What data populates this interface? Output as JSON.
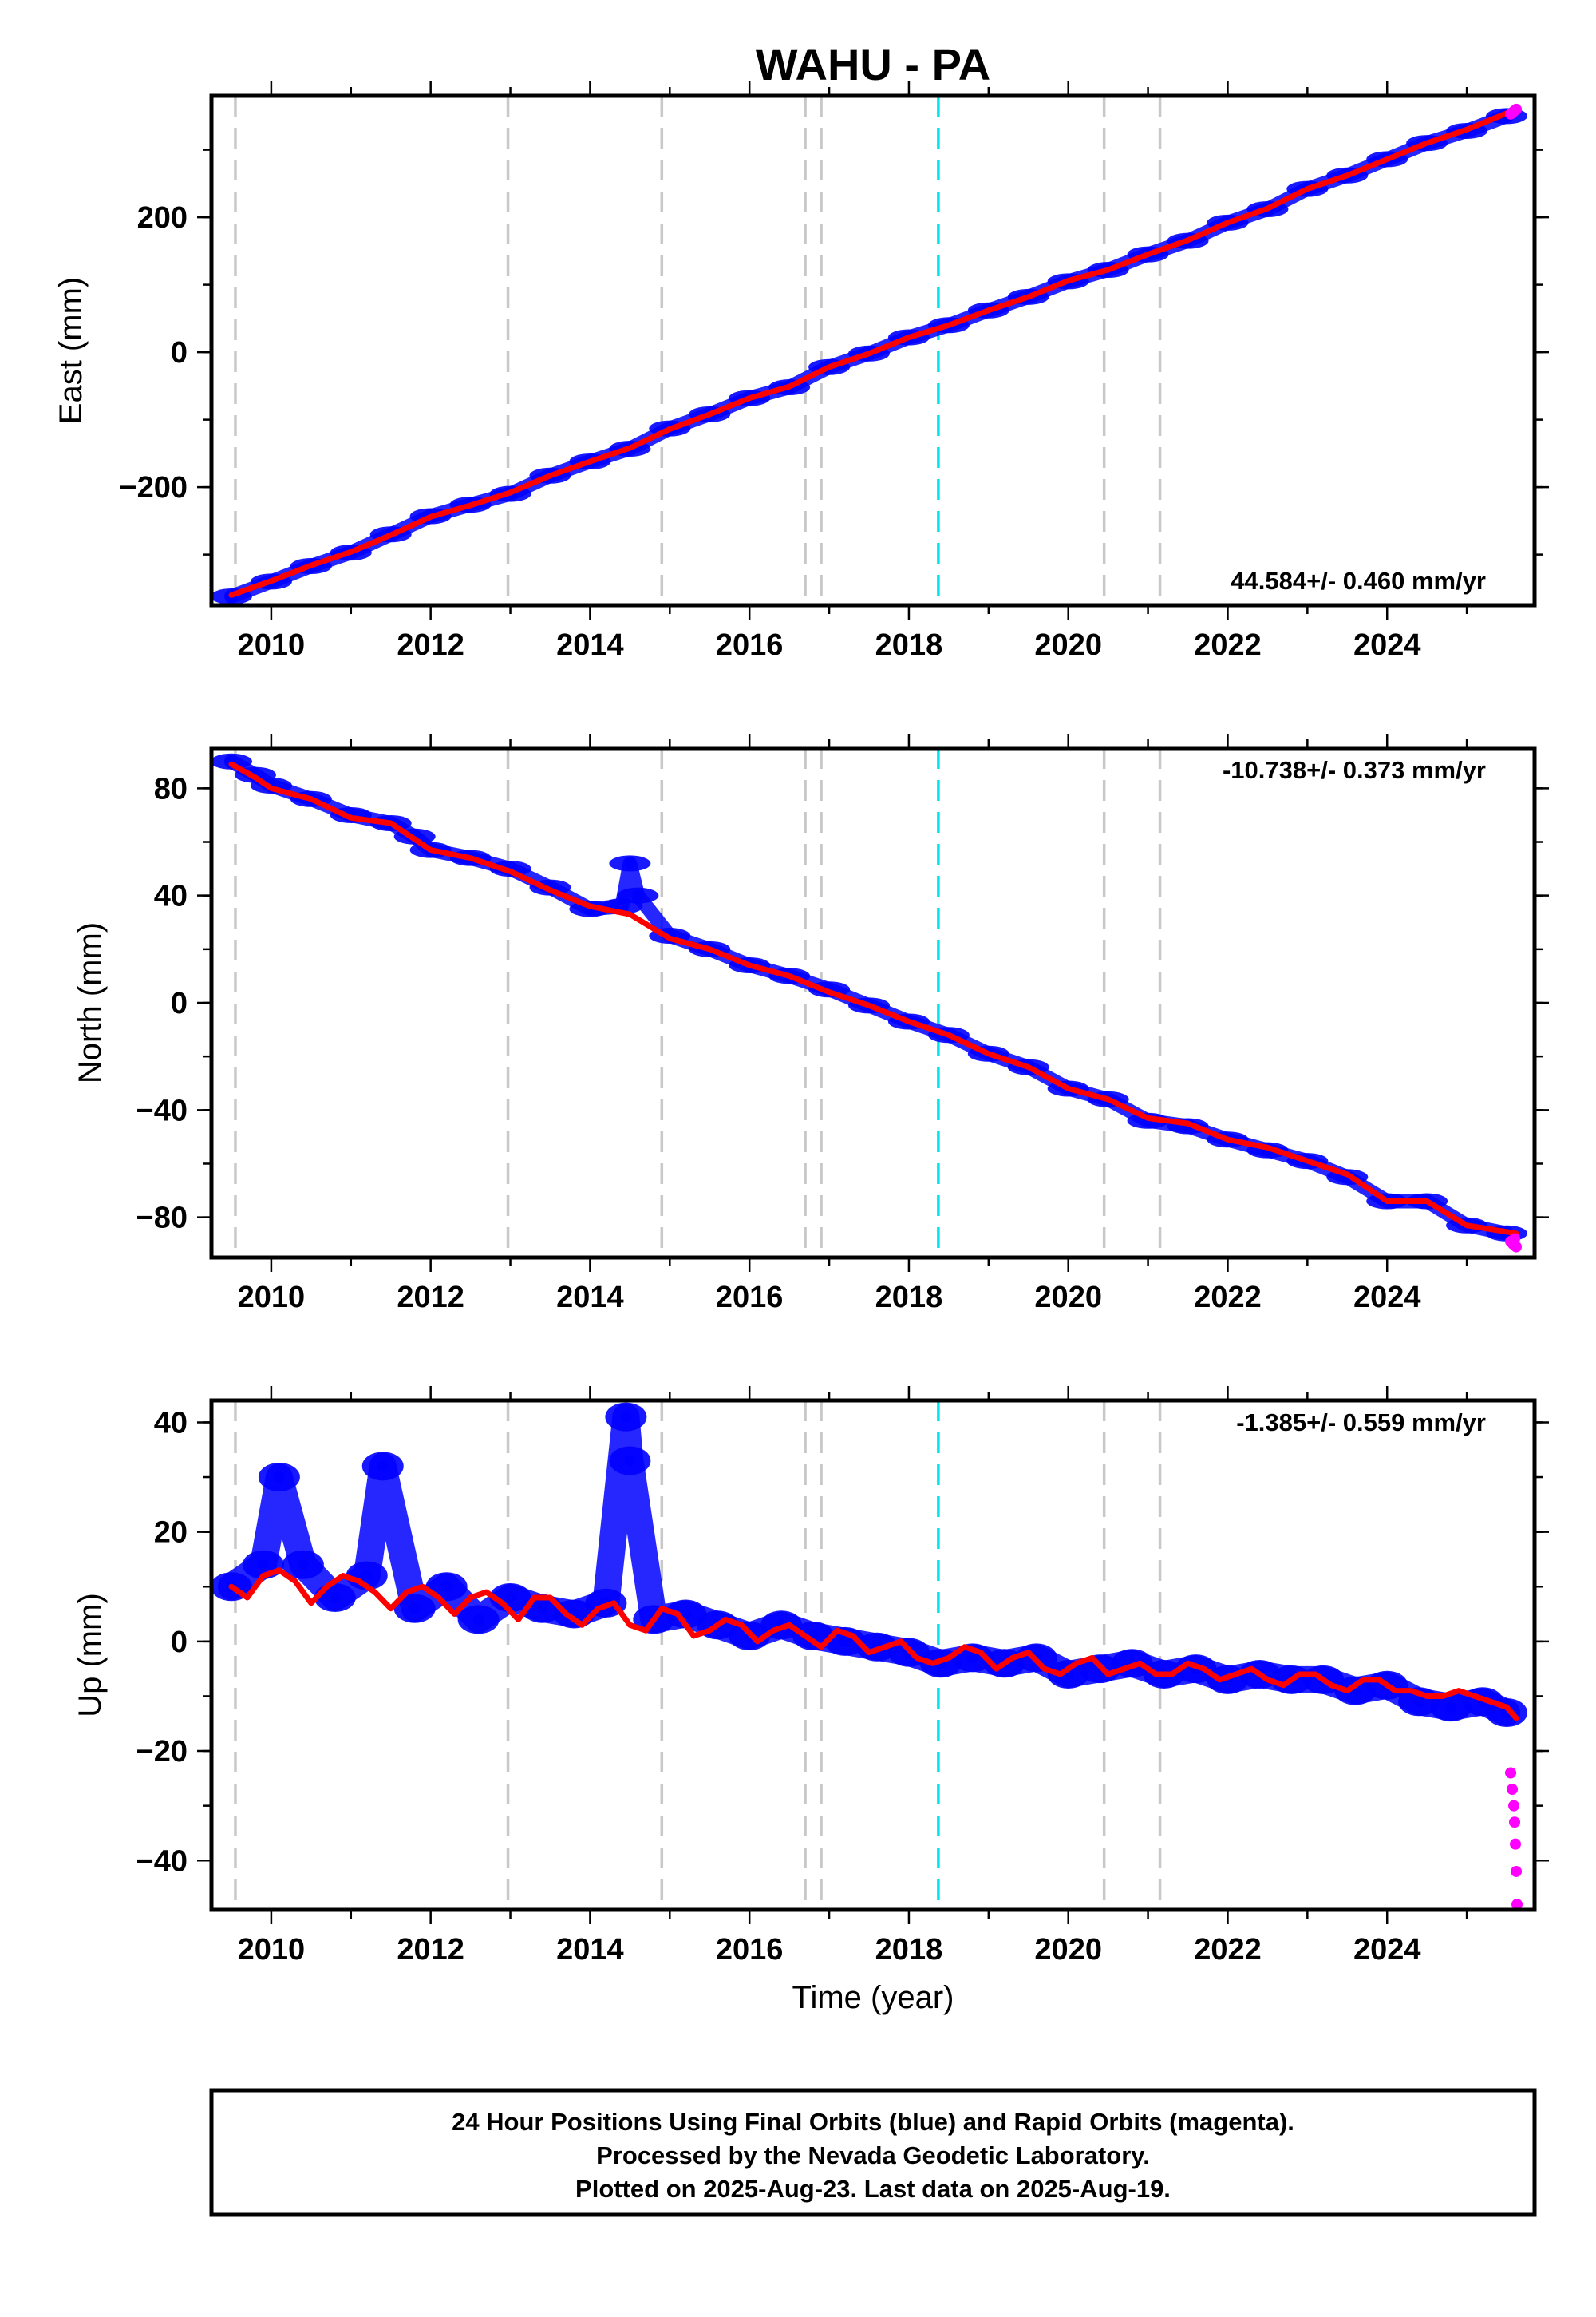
{
  "title": "WAHU - PA",
  "xlabel": "Time (year)",
  "footer": {
    "line1": "24 Hour Positions Using Final Orbits (blue) and Rapid Orbits (magenta).",
    "line2": "Processed by the Nevada Geodetic Laboratory.",
    "line3": "Plotted on 2025-Aug-23. Last data on 2025-Aug-19."
  },
  "colors": {
    "final": "#0000ff",
    "rapid": "#ff00ff",
    "model": "#ff0000",
    "equipment_change": "#c8c8c8",
    "earthquake": "#00e5ee"
  },
  "chart_data": [
    {
      "type": "scatter",
      "panel": "east",
      "ylabel": "East (mm)",
      "rate_label": "44.584+/- 0.460 mm/yr",
      "xlim": [
        2009.25,
        2025.85
      ],
      "ylim": [
        -375,
        380
      ],
      "xticks": [
        2010,
        2012,
        2014,
        2016,
        2018,
        2020,
        2022,
        2024
      ],
      "xtick_labels": [
        "2010",
        "2012",
        "2014",
        "2016",
        "2018",
        "2020",
        "2022",
        "2024"
      ],
      "yticks": [
        -200,
        0,
        200
      ],
      "ytick_labels": [
        "−200",
        "0",
        "200"
      ],
      "equipment_changes": [
        2009.55,
        2012.97,
        2014.9,
        2016.7,
        2016.9,
        2020.45,
        2021.15
      ],
      "earthquakes": [
        2018.37
      ],
      "series": [
        {
          "role": "final",
          "x": [
            2009.5,
            2010.0,
            2010.5,
            2011.0,
            2011.5,
            2012.0,
            2012.5,
            2013.0,
            2013.5,
            2014.0,
            2014.5,
            2015.0,
            2015.5,
            2016.0,
            2016.5,
            2017.0,
            2017.5,
            2018.0,
            2018.5,
            2019.0,
            2019.5,
            2020.0,
            2020.5,
            2021.0,
            2021.5,
            2022.0,
            2022.5,
            2023.0,
            2023.5,
            2024.0,
            2024.5,
            2025.0,
            2025.5
          ],
          "y": [
            -362,
            -340,
            -317,
            -297,
            -270,
            -243,
            -226,
            -210,
            -183,
            -162,
            -143,
            -113,
            -92,
            -68,
            -52,
            -22,
            -2,
            22,
            40,
            62,
            82,
            105,
            122,
            145,
            165,
            192,
            212,
            242,
            262,
            286,
            310,
            328,
            350
          ]
        },
        {
          "role": "rapid",
          "x": [
            2025.55,
            2025.58,
            2025.6,
            2025.62
          ],
          "y": [
            353,
            356,
            358,
            360
          ]
        },
        {
          "role": "model",
          "x": [
            2009.5,
            2010.0,
            2010.5,
            2011.0,
            2011.5,
            2012.0,
            2012.5,
            2013.0,
            2013.5,
            2014.0,
            2014.5,
            2015.0,
            2015.5,
            2016.0,
            2016.5,
            2017.0,
            2017.5,
            2018.0,
            2018.5,
            2019.0,
            2019.5,
            2020.0,
            2020.5,
            2021.0,
            2021.5,
            2022.0,
            2022.5,
            2023.0,
            2023.5,
            2024.0,
            2024.5,
            2025.0,
            2025.62
          ],
          "y": [
            -360,
            -339,
            -316,
            -296,
            -271,
            -244,
            -227,
            -208,
            -183,
            -162,
            -142,
            -114,
            -92,
            -68,
            -51,
            -22,
            -2,
            22,
            40,
            62,
            82,
            106,
            122,
            145,
            166,
            192,
            213,
            242,
            262,
            286,
            310,
            330,
            360
          ]
        }
      ]
    },
    {
      "type": "scatter",
      "panel": "north",
      "ylabel": "North (mm)",
      "rate_label": "-10.738+/- 0.373 mm/yr",
      "xlim": [
        2009.25,
        2025.85
      ],
      "ylim": [
        -95,
        95
      ],
      "xticks": [
        2010,
        2012,
        2014,
        2016,
        2018,
        2020,
        2022,
        2024
      ],
      "xtick_labels": [
        "2010",
        "2012",
        "2014",
        "2016",
        "2018",
        "2020",
        "2022",
        "2024"
      ],
      "yticks": [
        -80,
        -40,
        0,
        40,
        80
      ],
      "ytick_labels": [
        "−80",
        "−40",
        "0",
        "40",
        "80"
      ],
      "equipment_changes": [
        2009.55,
        2012.97,
        2014.9,
        2016.7,
        2016.9,
        2020.45,
        2021.15
      ],
      "earthquakes": [
        2018.37
      ],
      "series": [
        {
          "role": "final",
          "x": [
            2009.5,
            2009.8,
            2010.0,
            2010.5,
            2011.0,
            2011.5,
            2011.8,
            2012.0,
            2012.5,
            2013.0,
            2013.5,
            2014.0,
            2014.4,
            2014.5,
            2014.6,
            2015.0,
            2015.5,
            2016.0,
            2016.5,
            2017.0,
            2017.5,
            2018.0,
            2018.5,
            2019.0,
            2019.5,
            2020.0,
            2020.5,
            2021.0,
            2021.5,
            2022.0,
            2022.5,
            2023.0,
            2023.5,
            2024.0,
            2024.5,
            2025.0,
            2025.5
          ],
          "y": [
            90,
            85,
            81,
            76,
            70,
            67,
            62,
            57,
            54,
            50,
            43,
            35,
            36,
            52,
            40,
            25,
            20,
            14,
            10,
            5,
            -1,
            -7,
            -12,
            -19,
            -24,
            -32,
            -36,
            -44,
            -46,
            -51,
            -55,
            -59,
            -65,
            -74,
            -74,
            -83,
            -86
          ]
        },
        {
          "role": "rapid",
          "x": [
            2025.55,
            2025.58,
            2025.6,
            2025.62
          ],
          "y": [
            -89,
            -90,
            -88,
            -91
          ]
        },
        {
          "role": "model",
          "x": [
            2009.5,
            2009.8,
            2010.0,
            2010.5,
            2011.0,
            2011.5,
            2011.8,
            2012.0,
            2012.5,
            2013.0,
            2013.5,
            2014.0,
            2014.5,
            2015.0,
            2015.5,
            2016.0,
            2016.5,
            2017.0,
            2017.5,
            2018.0,
            2018.5,
            2019.0,
            2019.5,
            2020.0,
            2020.5,
            2021.0,
            2021.5,
            2022.0,
            2022.5,
            2023.0,
            2023.5,
            2024.0,
            2024.5,
            2025.0,
            2025.62
          ],
          "y": [
            89,
            84,
            80,
            76,
            69,
            67,
            61,
            57,
            54,
            49,
            42,
            36,
            33,
            24,
            20,
            14,
            10,
            4,
            -1,
            -7,
            -12,
            -19,
            -24,
            -32,
            -36,
            -43,
            -45,
            -51,
            -54,
            -59,
            -64,
            -74,
            -74,
            -83,
            -86
          ]
        }
      ]
    },
    {
      "type": "scatter",
      "panel": "up",
      "ylabel": "Up (mm)",
      "rate_label": "-1.385+/- 0.559 mm/yr",
      "xlim": [
        2009.25,
        2025.85
      ],
      "ylim": [
        -49,
        44
      ],
      "xticks": [
        2010,
        2012,
        2014,
        2016,
        2018,
        2020,
        2022,
        2024
      ],
      "xtick_labels": [
        "2010",
        "2012",
        "2014",
        "2016",
        "2018",
        "2020",
        "2022",
        "2024"
      ],
      "yticks": [
        -40,
        -20,
        0,
        20,
        40
      ],
      "ytick_labels": [
        "−40",
        "−20",
        "0",
        "20",
        "40"
      ],
      "equipment_changes": [
        2009.55,
        2012.97,
        2014.9,
        2016.7,
        2016.9,
        2020.45,
        2021.15
      ],
      "earthquakes": [
        2018.37
      ],
      "series": [
        {
          "role": "final",
          "x": [
            2009.5,
            2009.9,
            2010.1,
            2010.4,
            2010.8,
            2011.2,
            2011.4,
            2011.8,
            2012.2,
            2012.6,
            2013.0,
            2013.4,
            2013.8,
            2014.2,
            2014.45,
            2014.5,
            2014.8,
            2015.2,
            2015.6,
            2016.0,
            2016.4,
            2016.8,
            2017.2,
            2017.6,
            2018.0,
            2018.4,
            2018.8,
            2019.2,
            2019.6,
            2020.0,
            2020.4,
            2020.8,
            2021.2,
            2021.6,
            2022.0,
            2022.4,
            2022.8,
            2023.2,
            2023.6,
            2024.0,
            2024.4,
            2024.8,
            2025.2,
            2025.5
          ],
          "y": [
            10,
            14,
            30,
            14,
            8,
            12,
            32,
            6,
            10,
            4,
            8,
            6,
            5,
            7,
            41,
            33,
            4,
            5,
            3,
            1,
            3,
            1,
            0,
            -1,
            -2,
            -4,
            -3,
            -4,
            -3,
            -6,
            -5,
            -4,
            -6,
            -5,
            -7,
            -6,
            -7,
            -7,
            -9,
            -8,
            -11,
            -12,
            -11,
            -13
          ]
        },
        {
          "role": "rapid",
          "x": [
            2025.55,
            2025.57,
            2025.59,
            2025.6,
            2025.61,
            2025.62,
            2025.63
          ],
          "y": [
            -24,
            -27,
            -30,
            -33,
            -37,
            -42,
            -48
          ]
        },
        {
          "role": "model",
          "x": [
            2009.5,
            2009.7,
            2009.9,
            2010.1,
            2010.3,
            2010.5,
            2010.7,
            2010.9,
            2011.1,
            2011.3,
            2011.5,
            2011.7,
            2011.9,
            2012.1,
            2012.3,
            2012.5,
            2012.7,
            2012.9,
            2013.1,
            2013.3,
            2013.5,
            2013.7,
            2013.9,
            2014.1,
            2014.3,
            2014.5,
            2014.7,
            2014.9,
            2015.1,
            2015.3,
            2015.5,
            2015.7,
            2015.9,
            2016.1,
            2016.3,
            2016.5,
            2016.7,
            2016.9,
            2017.1,
            2017.3,
            2017.5,
            2017.7,
            2017.9,
            2018.1,
            2018.3,
            2018.5,
            2018.7,
            2018.9,
            2019.1,
            2019.3,
            2019.5,
            2019.7,
            2019.9,
            2020.1,
            2020.3,
            2020.5,
            2020.7,
            2020.9,
            2021.1,
            2021.3,
            2021.5,
            2021.7,
            2021.9,
            2022.1,
            2022.3,
            2022.5,
            2022.7,
            2022.9,
            2023.1,
            2023.3,
            2023.5,
            2023.7,
            2023.9,
            2024.1,
            2024.3,
            2024.5,
            2024.7,
            2024.9,
            2025.1,
            2025.3,
            2025.5,
            2025.62
          ],
          "y": [
            10,
            8,
            12,
            13,
            11,
            7,
            10,
            12,
            11,
            9,
            6,
            9,
            10,
            8,
            5,
            8,
            9,
            7,
            4,
            8,
            8,
            5,
            3,
            6,
            7,
            3,
            2,
            6,
            5,
            1,
            2,
            4,
            3,
            0,
            2,
            3,
            1,
            -1,
            2,
            1,
            -2,
            -1,
            0,
            -3,
            -4,
            -3,
            -1,
            -2,
            -5,
            -3,
            -2,
            -5,
            -6,
            -4,
            -3,
            -6,
            -5,
            -4,
            -6,
            -6,
            -4,
            -5,
            -7,
            -6,
            -5,
            -7,
            -8,
            -6,
            -6,
            -8,
            -9,
            -7,
            -7,
            -9,
            -9,
            -10,
            -10,
            -9,
            -10,
            -11,
            -12,
            -14
          ]
        }
      ]
    }
  ]
}
